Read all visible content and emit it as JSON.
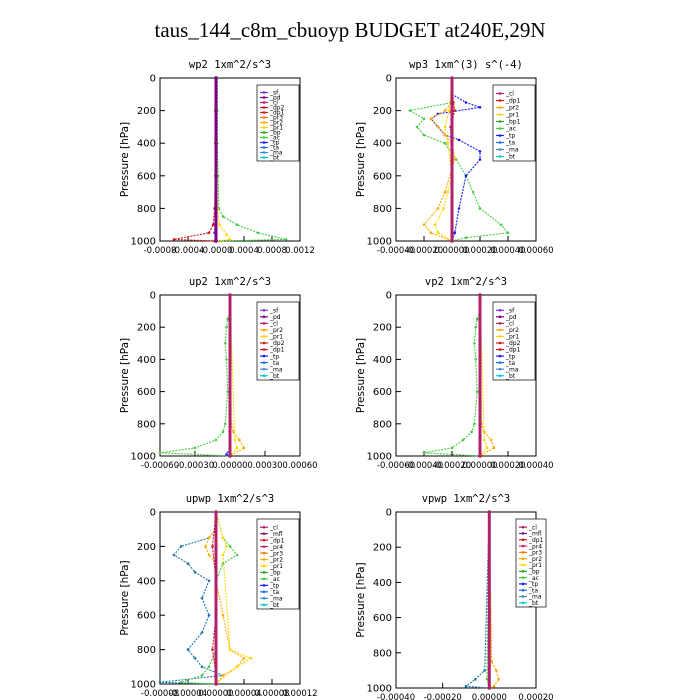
{
  "figure_title": "taus_144_c8m_cbuoyp  BUDGET at240E,29N",
  "colors": {
    "sf": "#8a2be2",
    "pd": "#800080",
    "cl": "#b0206b",
    "dp2": "#d01a1a",
    "dp1": "#d01a1a",
    "pr3": "#ff7700",
    "pr2": "#ffaa00",
    "pr1": "#ffd700",
    "bp": "#22aa22",
    "ac": "#44cc44",
    "tp": "#1a1aff",
    "ta": "#1e6ee6",
    "ma": "#4488cc",
    "bt": "#00cccc",
    "mfl": "#7a1a7a",
    "pr4": "#d02060",
    "upwp_tp": "#1a7aaa"
  },
  "chart_data": [
    {
      "type": "line",
      "title": "wp2   1xm^2/s^3",
      "ylabel": "Pressure [hPa]",
      "ylim": [
        1000,
        0
      ],
      "xlim": [
        -0.0008,
        0.0012
      ],
      "y_ticks": [
        "0",
        "200",
        "400",
        "600",
        "800",
        "1000"
      ],
      "x_ticks": [
        "-0.0008",
        "-0.0004",
        "-0.0000",
        "0.0004",
        "0.0008",
        "0.0012"
      ],
      "legend": [
        "_sf",
        "_pd",
        "_cl",
        "_dp2",
        "_dp1",
        "_pr3",
        "_pr2",
        "_pr1",
        "_bp",
        "_ac",
        "_tp",
        "_ta",
        "_ma",
        "_bt"
      ],
      "series": [
        {
          "name": "_ac",
          "color": "#44cc44",
          "y": [
            0,
            200,
            400,
            600,
            800,
            850,
            900,
            950,
            990,
            1000
          ],
          "x": [
            2e-05,
            2e-05,
            2e-05,
            3e-05,
            4e-05,
            0.0001,
            0.0003,
            0.0006,
            0.001,
            5e-05
          ]
        },
        {
          "name": "_dp1",
          "color": "#d01a1a",
          "y": [
            0,
            200,
            400,
            600,
            800,
            900,
            950,
            990,
            1000
          ],
          "x": [
            -1e-05,
            -1e-05,
            -1e-05,
            -1e-05,
            -2e-05,
            -4e-05,
            -0.0001,
            -0.0006,
            -2e-05
          ]
        },
        {
          "name": "_pr1",
          "color": "#ffd700",
          "y": [
            0,
            400,
            800,
            900,
            960,
            990,
            1000
          ],
          "x": [
            0,
            0,
            2e-05,
            5e-05,
            0.00015,
            0.0002,
            0
          ]
        },
        {
          "name": "_tp",
          "color": "#1a1aff",
          "y": [
            0,
            800,
            950,
            1000
          ],
          "x": [
            0,
            -1e-05,
            -2e-05,
            0
          ]
        },
        {
          "name": "_cl",
          "color": "#b0206b",
          "y": [
            0,
            1000
          ],
          "x": [
            0,
            0
          ]
        },
        {
          "name": "_pd",
          "color": "#800080",
          "y": [
            0,
            1000
          ],
          "x": [
            0,
            0
          ]
        }
      ]
    },
    {
      "type": "line",
      "title": "wp3   1xm^(3) s^(-4)",
      "ylabel": "Pressure [hPa]",
      "ylim": [
        1000,
        0
      ],
      "xlim": [
        -0.0004,
        0.0006
      ],
      "y_ticks": [
        "0",
        "200",
        "400",
        "600",
        "800",
        "1000"
      ],
      "x_ticks": [
        "-0.00040",
        "-0.00020",
        "0.00000",
        "0.00020",
        "0.00040",
        "0.00060"
      ],
      "legend": [
        "_cl",
        "_dp1",
        "_pr2",
        "_pr1",
        "_bp1",
        "_ac",
        "_tp",
        "_ta",
        "_ma",
        "_bt"
      ],
      "series": [
        {
          "name": "_ac",
          "color": "#44cc44",
          "y": [
            0,
            100,
            150,
            200,
            250,
            300,
            350,
            400,
            500,
            600,
            700,
            800,
            900,
            950,
            980,
            1000
          ],
          "x": [
            0,
            0,
            0,
            -0.0003,
            -0.0002,
            -0.00025,
            -0.0002,
            -5e-05,
            3e-05,
            0.0001,
            0.00015,
            0.0002,
            0.00035,
            0.0004,
            0.0001,
            0
          ]
        },
        {
          "name": "_tp",
          "color": "#1a1aff",
          "y": [
            0,
            100,
            150,
            180,
            220,
            250,
            300,
            350,
            380,
            450,
            500,
            600,
            800,
            950,
            1000
          ],
          "x": [
            0,
            0,
            0.0001,
            0.0002,
            -0.0001,
            -0.00015,
            -0.0001,
            -5e-05,
            5e-05,
            0.0002,
            0.0002,
            0.0001,
            5e-05,
            2e-05,
            0
          ]
        },
        {
          "name": "_pr2",
          "color": "#ffaa00",
          "y": [
            0,
            150,
            200,
            250,
            300,
            350,
            400,
            500,
            700,
            800,
            900,
            950,
            1000
          ],
          "x": [
            0,
            0,
            -5e-05,
            -0.00015,
            -0.0001,
            -5e-05,
            0,
            2e-05,
            -5e-05,
            -0.0001,
            -0.0002,
            -0.00015,
            0
          ]
        },
        {
          "name": "_pr1",
          "color": "#ffd700",
          "y": [
            0,
            200,
            300,
            400,
            600,
            700,
            800,
            900,
            950,
            1000
          ],
          "x": [
            0,
            -2e-05,
            -5e-05,
            -3e-05,
            0,
            -3e-05,
            -6e-05,
            -0.00012,
            -0.0001,
            0
          ]
        },
        {
          "name": "_dp1",
          "color": "#d01a1a",
          "y": [
            0,
            150,
            200,
            300,
            600,
            900,
            1000
          ],
          "x": [
            0,
            1e-05,
            2e-05,
            -1e-05,
            0,
            0,
            0
          ]
        },
        {
          "name": "_cl",
          "color": "#b0206b",
          "y": [
            0,
            1000
          ],
          "x": [
            0,
            0
          ]
        }
      ]
    },
    {
      "type": "line",
      "title": "up2   1xm^2/s^3",
      "ylabel": "Pressure [hPa]",
      "ylim": [
        1000,
        0
      ],
      "xlim": [
        -0.0006,
        0.0006
      ],
      "y_ticks": [
        "0",
        "200",
        "400",
        "600",
        "800",
        "1000"
      ],
      "x_ticks": [
        "-0.00060",
        "-0.00030",
        "0.00000",
        "0.00030",
        "0.00060"
      ],
      "legend": [
        "_sf",
        "_pd",
        "_cl",
        "_pr2",
        "_pr1",
        "_dp2",
        "_dp1",
        "_tp",
        "_ta",
        "_ma",
        "_bt"
      ],
      "series": [
        {
          "name": "_dp1",
          "color": "#44cc44",
          "y": [
            0,
            100,
            150,
            200,
            300,
            400,
            600,
            800,
            850,
            900,
            950,
            980,
            1000
          ],
          "x": [
            0,
            0,
            -2e-05,
            -3e-05,
            -4e-05,
            -3e-05,
            -2e-05,
            -4e-05,
            -6e-05,
            -0.00012,
            -0.0003,
            -0.0006,
            0
          ]
        },
        {
          "name": "_pr2",
          "color": "#ffaa00",
          "y": [
            0,
            800,
            850,
            900,
            950,
            1000
          ],
          "x": [
            0,
            1e-05,
            3e-05,
            8e-05,
            0.00012,
            0
          ]
        },
        {
          "name": "_pr1",
          "color": "#ffd700",
          "y": [
            0,
            900,
            950,
            1000
          ],
          "x": [
            0,
            4e-05,
            6e-05,
            0
          ]
        },
        {
          "name": "_tp",
          "color": "#1a1aff",
          "y": [
            0,
            950,
            990,
            1000
          ],
          "x": [
            0,
            0,
            -3e-05,
            0
          ]
        },
        {
          "name": "_cl",
          "color": "#b0206b",
          "y": [
            0,
            1000
          ],
          "x": [
            0,
            0
          ]
        }
      ]
    },
    {
      "type": "line",
      "title": "vp2   1xm^2/s^3",
      "ylabel": "Pressure [hPa]",
      "ylim": [
        1000,
        0
      ],
      "xlim": [
        -0.0006,
        0.0004
      ],
      "y_ticks": [
        "0",
        "200",
        "400",
        "600",
        "800",
        "1000"
      ],
      "x_ticks": [
        "-0.00060",
        "-0.00040",
        "-0.00020",
        "0.00000",
        "0.00020",
        "0.00040"
      ],
      "legend": [
        "_sf",
        "_pd",
        "_cl",
        "_pr2",
        "_pr1",
        "_dp2",
        "_dp1",
        "_tp",
        "_ta",
        "_ma",
        "_bt"
      ],
      "series": [
        {
          "name": "_dp1",
          "color": "#44cc44",
          "y": [
            0,
            100,
            150,
            200,
            300,
            400,
            600,
            800,
            850,
            900,
            950,
            980,
            1000
          ],
          "x": [
            0,
            0,
            -2e-05,
            -3e-05,
            -4e-05,
            -3e-05,
            -2e-05,
            -4e-05,
            -6e-05,
            -0.00012,
            -0.0002,
            -0.0004,
            0
          ]
        },
        {
          "name": "_pr2",
          "color": "#ffaa00",
          "y": [
            0,
            800,
            850,
            900,
            950,
            1000
          ],
          "x": [
            0,
            1e-05,
            3e-05,
            8e-05,
            0.0001,
            0
          ]
        },
        {
          "name": "_pr1",
          "color": "#ffd700",
          "y": [
            0,
            900,
            950,
            1000
          ],
          "x": [
            0,
            3e-05,
            5e-05,
            0
          ]
        },
        {
          "name": "_cl",
          "color": "#b0206b",
          "y": [
            0,
            1000
          ],
          "x": [
            0,
            0
          ]
        }
      ]
    },
    {
      "type": "line",
      "title": "upwp   1xm^2/s^3",
      "ylabel": "Pressure [hPa]",
      "ylim": [
        1000,
        0
      ],
      "xlim": [
        -8e-05,
        0.00012
      ],
      "y_ticks": [
        "0",
        "200",
        "400",
        "600",
        "800",
        "1000"
      ],
      "x_ticks": [
        "-0.00008",
        "-0.00004",
        "0.00000",
        "0.00004",
        "0.00008",
        "0.00012"
      ],
      "legend": [
        "_cl",
        "_mfl",
        "_dp1",
        "_pr4",
        "_pr3",
        "_pr2",
        "_pr1",
        "_bp",
        "_ac",
        "_tp",
        "_ta",
        "_ma",
        "_bt"
      ],
      "series": [
        {
          "name": "_tp",
          "color": "#1a7aaa",
          "y": [
            0,
            100,
            150,
            200,
            250,
            300,
            350,
            400,
            500,
            600,
            700,
            800,
            850,
            900,
            950,
            990,
            1000
          ],
          "x": [
            0,
            0,
            -1e-05,
            -5e-05,
            -6e-05,
            -4e-05,
            -3e-05,
            -1e-05,
            -2e-05,
            -1e-05,
            -2e-05,
            -4e-05,
            -3e-05,
            -2e-05,
            1e-05,
            -8e-05,
            0
          ]
        },
        {
          "name": "_ac",
          "color": "#44cc44",
          "y": [
            0,
            150,
            200,
            250,
            300,
            400,
            600,
            800,
            900,
            950,
            990,
            1000
          ],
          "x": [
            0,
            1e-05,
            2e-05,
            3e-05,
            1e-05,
            0,
            0,
            0,
            -1e-05,
            -2e-05,
            -5e-05,
            0
          ]
        },
        {
          "name": "_pr2",
          "color": "#ffaa00",
          "y": [
            0,
            100,
            150,
            200,
            250,
            300,
            400,
            600,
            800,
            850,
            900,
            950,
            1000
          ],
          "x": [
            0,
            0,
            -1e-05,
            -1.5e-05,
            -1e-05,
            0,
            0,
            1e-05,
            2e-05,
            4e-05,
            3e-05,
            1e-05,
            0
          ]
        },
        {
          "name": "_pr1",
          "color": "#ffd700",
          "y": [
            0,
            150,
            200,
            250,
            800,
            850,
            900,
            1000
          ],
          "x": [
            0,
            1e-05,
            1.5e-05,
            1e-05,
            2e-05,
            5e-05,
            3e-05,
            0
          ]
        },
        {
          "name": "_dp1",
          "color": "#d01a1a",
          "y": [
            0,
            200,
            400,
            600,
            800,
            950,
            1000
          ],
          "x": [
            0,
            -5e-06,
            0,
            0,
            -5e-06,
            0,
            0
          ]
        },
        {
          "name": "_cl",
          "color": "#b0206b",
          "y": [
            0,
            1000
          ],
          "x": [
            0,
            0
          ]
        }
      ]
    },
    {
      "type": "line",
      "title": "vpwp   1xm^2/s^3",
      "ylabel": "Pressure [hPa]",
      "ylim": [
        1000,
        0
      ],
      "xlim": [
        -0.0004,
        0.0002
      ],
      "y_ticks": [
        "0",
        "200",
        "400",
        "600",
        "800",
        "1000"
      ],
      "x_ticks": [
        "-0.00040",
        "-0.00020",
        "0.00000",
        "0.00020"
      ],
      "legend": [
        "_cl",
        "_mfl",
        "_dp1",
        "_pr4",
        "_pr3",
        "_pr2",
        "_pr1",
        "_bp",
        "_ac",
        "_tp",
        "_ta",
        "_ma",
        "_bt"
      ],
      "series": [
        {
          "name": "_tp",
          "color": "#1a7aaa",
          "y": [
            0,
            900,
            950,
            990,
            1000
          ],
          "x": [
            0,
            -2e-05,
            -6e-05,
            -0.0001,
            0
          ]
        },
        {
          "name": "_pr2",
          "color": "#ffaa00",
          "y": [
            0,
            850,
            900,
            950,
            990,
            1000
          ],
          "x": [
            0,
            1e-05,
            3e-05,
            4e-05,
            2e-05,
            0
          ]
        },
        {
          "name": "_ac",
          "color": "#44cc44",
          "y": [
            0,
            950,
            1000
          ],
          "x": [
            0,
            -1e-05,
            0
          ]
        },
        {
          "name": "_cl",
          "color": "#b0206b",
          "y": [
            0,
            1000
          ],
          "x": [
            0,
            0
          ]
        }
      ]
    }
  ]
}
